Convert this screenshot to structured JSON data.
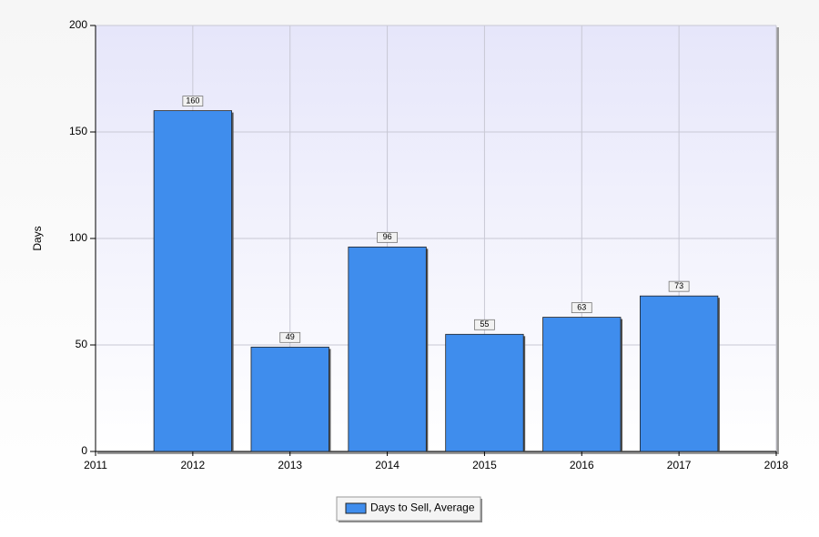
{
  "chart_data": {
    "type": "bar",
    "y_label": "Days",
    "x": [
      2012,
      2013,
      2014,
      2015,
      2016,
      2017
    ],
    "series": [
      {
        "name": "Days to Sell, Average",
        "color": "#3f8ded",
        "values": [
          160,
          49,
          96,
          55,
          63,
          73
        ]
      }
    ],
    "xlim": [
      2011,
      2018
    ],
    "xticks": [
      2011,
      2012,
      2013,
      2014,
      2015,
      2016,
      2017,
      2018
    ],
    "ylim": [
      0,
      200
    ],
    "yticks": [
      0,
      50,
      100,
      150,
      200
    ],
    "grid": true,
    "legend": "bottom"
  }
}
